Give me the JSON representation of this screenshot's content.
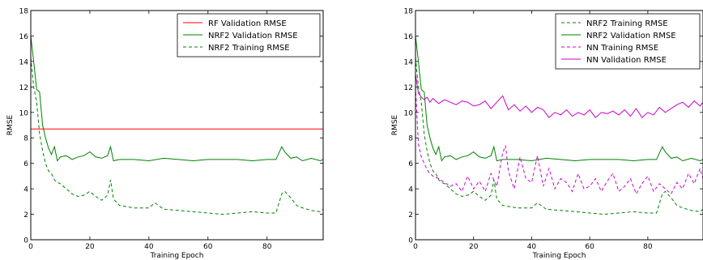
{
  "chart_data": [
    {
      "type": "line",
      "title": "",
      "xlabel": "Training Epoch",
      "ylabel": "RMSE",
      "xlim": [
        0,
        99
      ],
      "ylim": [
        0,
        18
      ],
      "xticks": [
        0,
        20,
        40,
        60,
        80
      ],
      "yticks": [
        0,
        2,
        4,
        6,
        8,
        10,
        12,
        14,
        16,
        18
      ],
      "grid": false,
      "legend_position": "top-right",
      "series": [
        {
          "name": "RF Validation RMSE",
          "color": "#ff0000",
          "style": "solid",
          "x": [
            0,
            99
          ],
          "y": [
            8.7,
            8.7
          ]
        },
        {
          "name": "NRF2 Validation RMSE",
          "color": "#008000",
          "style": "solid",
          "x": [
            0,
            1,
            2,
            3,
            4,
            5,
            6,
            7,
            8,
            9,
            10,
            12,
            14,
            16,
            18,
            20,
            22,
            24,
            26,
            27,
            28,
            30,
            35,
            40,
            45,
            50,
            55,
            60,
            65,
            70,
            75,
            80,
            83,
            85,
            86,
            88,
            90,
            92,
            95,
            98,
            99
          ],
          "y": [
            16.0,
            14.0,
            11.8,
            11.6,
            9.0,
            8.0,
            7.2,
            6.7,
            7.3,
            6.2,
            6.5,
            6.6,
            6.3,
            6.5,
            6.6,
            6.9,
            6.5,
            6.4,
            6.6,
            7.3,
            6.2,
            6.3,
            6.3,
            6.2,
            6.4,
            6.3,
            6.2,
            6.3,
            6.3,
            6.3,
            6.2,
            6.3,
            6.3,
            7.3,
            6.9,
            6.4,
            6.5,
            6.2,
            6.4,
            6.2,
            6.3
          ]
        },
        {
          "name": "NRF2 Training RMSE",
          "color": "#008000",
          "style": "dashed",
          "x": [
            0,
            1,
            2,
            3,
            4,
            5,
            6,
            7,
            8,
            9,
            10,
            12,
            14,
            16,
            18,
            20,
            22,
            24,
            26,
            27,
            28,
            30,
            35,
            40,
            42,
            45,
            50,
            55,
            60,
            65,
            70,
            75,
            80,
            83,
            85,
            86,
            88,
            90,
            92,
            95,
            98,
            99
          ],
          "y": [
            14.3,
            12.0,
            10.8,
            8.3,
            7.0,
            6.0,
            5.4,
            5.2,
            4.7,
            4.5,
            4.4,
            4.0,
            3.6,
            3.4,
            3.5,
            3.8,
            3.4,
            3.1,
            3.5,
            4.7,
            3.2,
            2.7,
            2.5,
            2.5,
            2.9,
            2.4,
            2.3,
            2.2,
            2.1,
            2.0,
            2.1,
            2.2,
            2.1,
            2.1,
            3.6,
            3.8,
            3.3,
            2.7,
            2.5,
            2.3,
            2.2,
            2.4
          ]
        }
      ]
    },
    {
      "type": "line",
      "title": "",
      "xlabel": "Training Epoch",
      "ylabel": "RMSE",
      "xlim": [
        0,
        99
      ],
      "ylim": [
        0,
        18
      ],
      "xticks": [
        0,
        20,
        40,
        60,
        80
      ],
      "yticks": [
        0,
        2,
        4,
        6,
        8,
        10,
        12,
        14,
        16,
        18
      ],
      "grid": false,
      "legend_position": "top-right",
      "series": [
        {
          "name": "NRF2 Training RMSE",
          "color": "#008000",
          "style": "dashed",
          "x": [
            0,
            1,
            2,
            3,
            4,
            5,
            6,
            7,
            8,
            9,
            10,
            12,
            14,
            16,
            18,
            20,
            22,
            24,
            26,
            27,
            28,
            30,
            35,
            40,
            42,
            45,
            50,
            55,
            60,
            65,
            70,
            75,
            80,
            83,
            85,
            86,
            88,
            90,
            92,
            95,
            98,
            99
          ],
          "y": [
            14.3,
            12.0,
            10.8,
            8.3,
            7.0,
            6.0,
            5.4,
            5.2,
            4.7,
            4.5,
            4.4,
            4.0,
            3.6,
            3.4,
            3.5,
            3.8,
            3.4,
            3.1,
            3.5,
            4.7,
            3.2,
            2.7,
            2.5,
            2.5,
            2.9,
            2.4,
            2.3,
            2.2,
            2.1,
            2.0,
            2.1,
            2.2,
            2.1,
            2.1,
            3.6,
            3.8,
            3.3,
            2.7,
            2.5,
            2.3,
            2.2,
            2.4
          ]
        },
        {
          "name": "NRF2 Validation RMSE",
          "color": "#008000",
          "style": "solid",
          "x": [
            0,
            1,
            2,
            3,
            4,
            5,
            6,
            7,
            8,
            9,
            10,
            12,
            14,
            16,
            18,
            20,
            22,
            24,
            26,
            27,
            28,
            30,
            35,
            40,
            45,
            50,
            55,
            60,
            65,
            70,
            75,
            80,
            83,
            85,
            86,
            88,
            90,
            92,
            95,
            98,
            99
          ],
          "y": [
            16.0,
            14.0,
            11.8,
            11.6,
            9.0,
            8.0,
            7.2,
            6.7,
            7.3,
            6.2,
            6.5,
            6.6,
            6.3,
            6.5,
            6.6,
            6.9,
            6.5,
            6.4,
            6.6,
            7.3,
            6.2,
            6.3,
            6.3,
            6.2,
            6.4,
            6.3,
            6.2,
            6.3,
            6.3,
            6.3,
            6.2,
            6.3,
            6.3,
            7.3,
            6.9,
            6.4,
            6.5,
            6.2,
            6.4,
            6.2,
            6.3
          ]
        },
        {
          "name": "NN Training RMSE",
          "color": "#cc00cc",
          "style": "dashed",
          "x": [
            0,
            1,
            2,
            3,
            4,
            5,
            6,
            8,
            10,
            12,
            14,
            16,
            18,
            20,
            22,
            24,
            26,
            28,
            30,
            31,
            32,
            34,
            36,
            38,
            40,
            42,
            44,
            46,
            48,
            50,
            52,
            54,
            56,
            58,
            60,
            62,
            64,
            66,
            68,
            70,
            72,
            74,
            76,
            78,
            80,
            82,
            84,
            86,
            88,
            90,
            92,
            94,
            96,
            98,
            99
          ],
          "y": [
            12.0,
            7.5,
            6.5,
            6.0,
            5.5,
            5.2,
            5.0,
            4.8,
            4.5,
            4.2,
            4.4,
            3.8,
            5.0,
            4.0,
            4.6,
            3.8,
            5.2,
            4.2,
            6.8,
            7.4,
            5.4,
            4.0,
            6.5,
            4.8,
            4.5,
            6.6,
            4.2,
            5.6,
            4.0,
            4.8,
            4.5,
            3.8,
            5.2,
            4.0,
            4.2,
            4.8,
            3.8,
            4.6,
            5.2,
            3.8,
            4.2,
            4.8,
            3.6,
            4.4,
            5.0,
            3.8,
            4.4,
            4.0,
            3.6,
            4.5,
            4.0,
            5.2,
            4.4,
            5.6,
            4.8
          ]
        },
        {
          "name": "NN Validation RMSE",
          "color": "#cc00cc",
          "style": "solid",
          "x": [
            0,
            1,
            2,
            3,
            4,
            5,
            6,
            8,
            10,
            12,
            14,
            16,
            18,
            20,
            22,
            24,
            26,
            28,
            30,
            32,
            34,
            36,
            38,
            40,
            42,
            44,
            46,
            48,
            50,
            52,
            54,
            56,
            58,
            60,
            62,
            64,
            66,
            68,
            70,
            72,
            74,
            76,
            78,
            80,
            82,
            84,
            86,
            88,
            90,
            92,
            94,
            96,
            98,
            99
          ],
          "y": [
            13.0,
            11.5,
            11.2,
            11.0,
            11.2,
            10.8,
            11.1,
            10.7,
            11.0,
            10.8,
            10.6,
            10.9,
            10.8,
            10.5,
            10.6,
            10.9,
            10.3,
            10.8,
            11.3,
            10.2,
            10.6,
            10.1,
            10.5,
            10.0,
            10.4,
            10.2,
            9.6,
            10.0,
            9.8,
            10.2,
            9.7,
            10.0,
            9.8,
            10.2,
            9.6,
            10.0,
            9.9,
            10.1,
            9.8,
            10.2,
            9.7,
            10.3,
            9.6,
            10.0,
            9.8,
            10.4,
            10.0,
            10.3,
            10.6,
            10.8,
            10.4,
            10.9,
            10.5,
            10.8
          ]
        }
      ]
    }
  ]
}
